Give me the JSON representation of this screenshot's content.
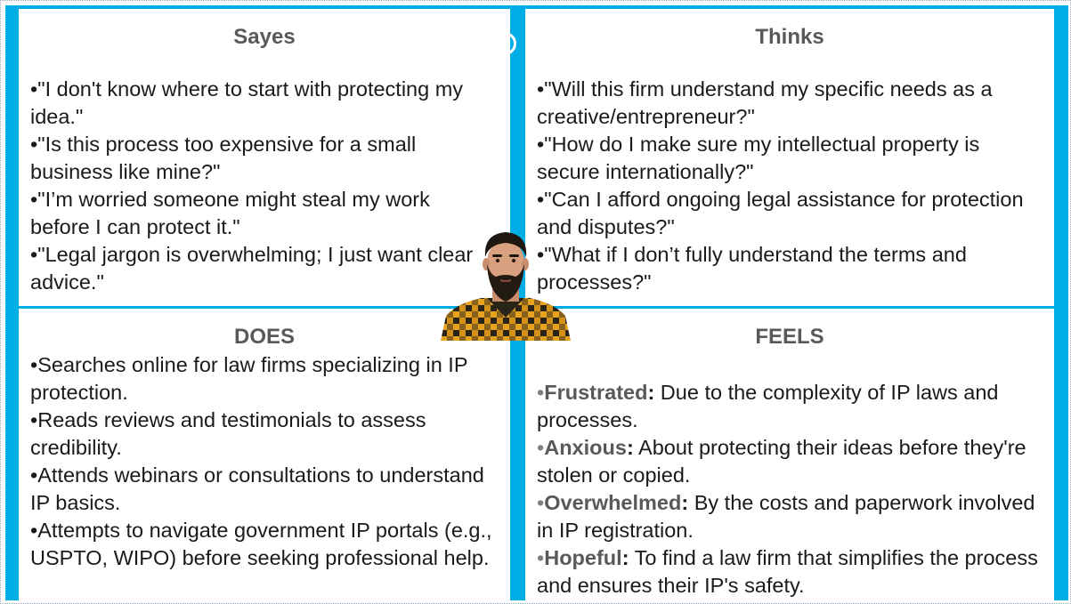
{
  "says": {
    "title": "Sayes",
    "items": [
      "\"I don't know where to start with protecting my idea.\"",
      "\"Is this process too expensive for a small business like mine?\"",
      "\"I’m worried someone might steal my work before I can protect it.\"",
      "\"Legal jargon is overwhelming; I just want clear advice.\""
    ]
  },
  "thinks": {
    "title": "Thinks",
    "items": [
      "\"Will this firm understand my specific needs as a creative/entrepreneur?\"",
      "\"How do I make sure my intellectual property is secure internationally?\"",
      "\"Can I afford ongoing legal assistance for protection and disputes?\"",
      "\"What if I don’t fully understand the terms and processes?\""
    ]
  },
  "does": {
    "title": "DOES",
    "items": [
      "Searches online for law firms specializing in IP protection.",
      "Reads reviews and testimonials to assess credibility.",
      "Attends webinars or consultations to understand IP basics.",
      "Attempts to navigate government IP portals (e.g., USPTO, WIPO) before seeking professional help."
    ]
  },
  "feels": {
    "title": "FEELS",
    "items": [
      {
        "term": "Frustrated",
        "sep": ":",
        "text": " Due to the complexity of IP laws and processes."
      },
      {
        "term": "Anxious",
        "sep": ":",
        "text": " About protecting their ideas before they're stolen or copied."
      },
      {
        "term": "Overwhelmed",
        "sep": ":",
        "text": " By the costs and paperwork involved in IP registration."
      },
      {
        "term": "Hopeful",
        "sep": ":",
        "text": " To find a law firm that simplifies the process and ensures their IP's safety."
      }
    ]
  },
  "bullet_glyph": "•",
  "colors": {
    "frame": "#00aee6",
    "heading": "#595959",
    "body_text": "#1a1a1a",
    "feels_bullet": "#7f7f7f",
    "shirt_yellow": "#e7a21f",
    "shirt_dark": "#2b2418"
  },
  "icons": {
    "persona": "bearded-man-portrait"
  }
}
